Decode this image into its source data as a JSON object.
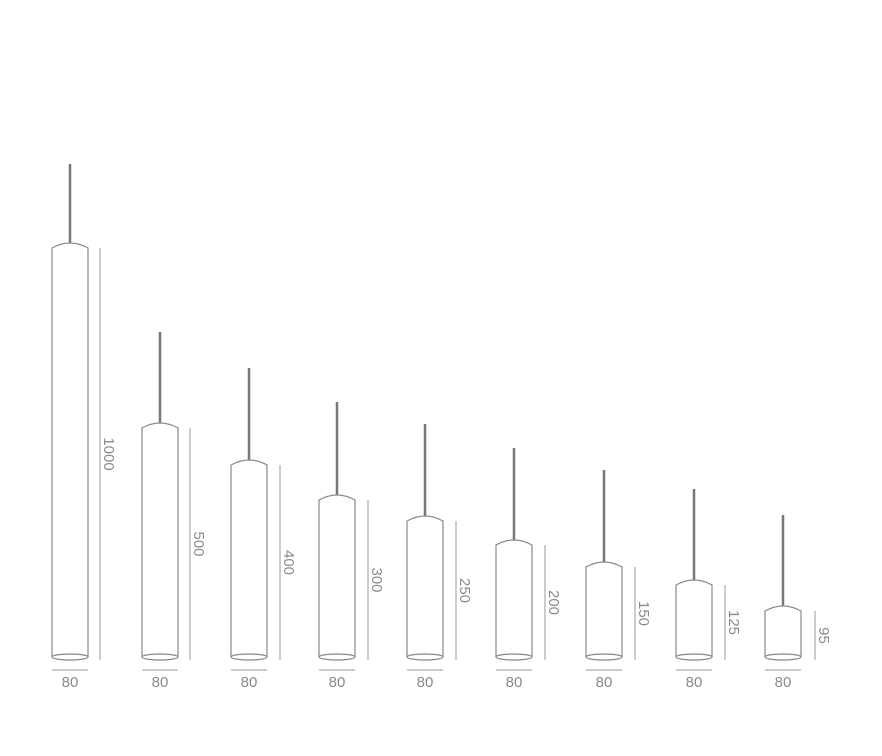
{
  "lamps": [
    {
      "height": 1000,
      "diameter": 80
    },
    {
      "height": 500,
      "diameter": 80
    },
    {
      "height": 400,
      "diameter": 80
    },
    {
      "height": 300,
      "diameter": 80
    },
    {
      "height": 250,
      "diameter": 80
    },
    {
      "height": 200,
      "diameter": 80
    },
    {
      "height": 150,
      "diameter": 80
    },
    {
      "height": 125,
      "diameter": 80
    },
    {
      "height": 95,
      "diameter": 80
    }
  ]
}
